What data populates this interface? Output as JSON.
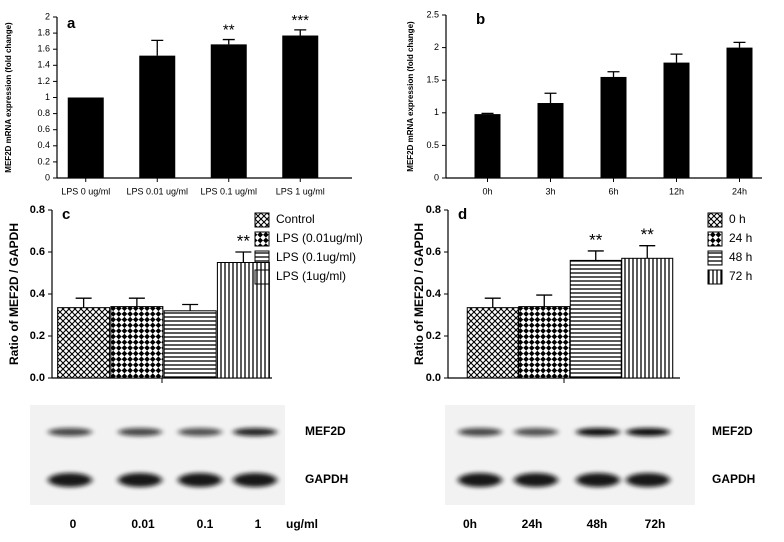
{
  "chart_data": [
    {
      "type": "bar",
      "panel": "a",
      "y_label": "MEF2D mRNA expression (fold change)",
      "categories": [
        "LPS 0 ug/ml",
        "LPS 0.01 ug/ml",
        "LPS 0.1 ug/ml",
        "LPS 1 ug/ml"
      ],
      "values": [
        1,
        1.52,
        1.66,
        1.77
      ],
      "errors": [
        0,
        0.19,
        0.06,
        0.07
      ],
      "significance": [
        null,
        null,
        "**",
        "***"
      ],
      "color": "#000000",
      "ylim": [
        0,
        2
      ],
      "yticks": [
        0,
        0.2,
        0.4,
        0.6,
        0.8,
        1,
        1.2,
        1.4,
        1.6,
        1.8,
        2
      ]
    },
    {
      "type": "bar",
      "panel": "b",
      "y_label": "MEF2D mRNA expression (fold change)",
      "categories": [
        "0h",
        "3h",
        "6h",
        "12h",
        "24h"
      ],
      "values": [
        0.98,
        1.15,
        1.55,
        1.77,
        2.0
      ],
      "errors": [
        0.01,
        0.15,
        0.08,
        0.13,
        0.08
      ],
      "color": "#000000",
      "ylim": [
        0,
        2.5
      ],
      "yticks": [
        0,
        0.5,
        1,
        1.5,
        2,
        2.5
      ]
    },
    {
      "type": "pattern_bar",
      "panel": "c",
      "y_label": "Ratio of MEF2D / GAPDH",
      "series": [
        {
          "name": "Control",
          "pattern": "crosshatch",
          "values": [
            0.335
          ],
          "errors": [
            0.045
          ]
        },
        {
          "name": "LPS (0.01ug/ml)",
          "pattern": "checker",
          "values": [
            0.34
          ],
          "errors": [
            0.04
          ]
        },
        {
          "name": "LPS (0.1ug/ml)",
          "pattern": "horizontal",
          "values": [
            0.32
          ],
          "errors": [
            0.03
          ]
        },
        {
          "name": "LPS (1ug/ml)",
          "pattern": "vertical",
          "values": [
            0.55
          ],
          "errors": [
            0.05
          ],
          "significance": [
            "**"
          ]
        }
      ],
      "ylim": [
        0,
        0.8
      ],
      "yticks": [
        {
          "value": 0,
          "label": "0.0"
        },
        0.2,
        0.4,
        0.6,
        0.8
      ]
    },
    {
      "type": "pattern_bar",
      "panel": "d",
      "y_label": "Ratio of MEF2D / GAPDH",
      "series": [
        {
          "name": "0 h",
          "pattern": "crosshatch",
          "values": [
            0.335
          ],
          "errors": [
            0.045
          ]
        },
        {
          "name": "24 h",
          "pattern": "checker",
          "values": [
            0.34
          ],
          "errors": [
            0.055
          ]
        },
        {
          "name": "48 h",
          "pattern": "horizontal",
          "values": [
            0.56
          ],
          "errors": [
            0.045
          ],
          "significance": [
            "**"
          ]
        },
        {
          "name": "72 h",
          "pattern": "vertical",
          "values": [
            0.57
          ],
          "errors": [
            0.06
          ],
          "significance": [
            "**"
          ]
        }
      ],
      "ylim": [
        0,
        0.8
      ],
      "yticks": [
        {
          "value": 0,
          "label": "0.0"
        },
        0.2,
        0.4,
        0.6,
        0.8
      ]
    }
  ],
  "blots": [
    {
      "rows": [
        "MEF2D",
        "GAPDH"
      ],
      "lanes": [
        "0",
        "0.01",
        "0.1",
        "1"
      ],
      "unit": "ug/ml"
    },
    {
      "rows": [
        "MEF2D",
        "GAPDH"
      ],
      "lanes": [
        "0h",
        "24h",
        "48h",
        "72h"
      ]
    }
  ]
}
